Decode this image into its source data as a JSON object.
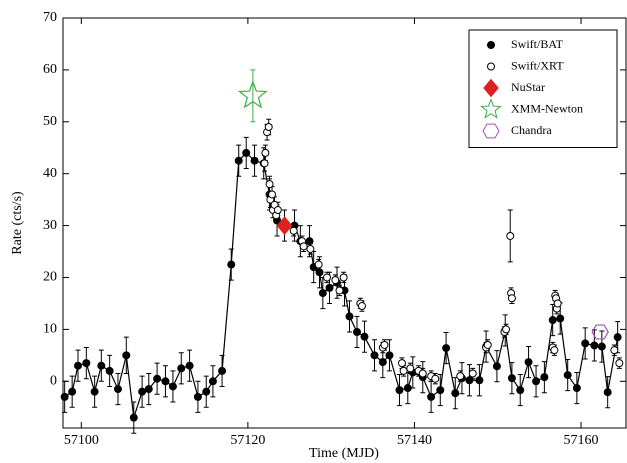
{
  "chart_data": {
    "type": "scatter",
    "x_label": "Time (MJD)",
    "y_label": "Rate (cts/s)",
    "xlim": [
      57097.8,
      57165.4
    ],
    "ylim": [
      -9,
      70
    ],
    "xticks": [
      57100,
      57120,
      57140,
      57160
    ],
    "yticks": [
      0,
      10,
      20,
      30,
      40,
      50,
      60,
      70
    ],
    "legend": "upper right",
    "series": [
      {
        "name": "Swift/BAT",
        "color": "#000000",
        "marker": "circle",
        "filled": true,
        "line": true,
        "x": [
          57098,
          57098.9,
          57099.6,
          57100.6,
          57101.6,
          57102.4,
          57103.4,
          57104.4,
          57105.4,
          57106.3,
          57107.3,
          57108.1,
          57109.1,
          57110.1,
          57111.0,
          57112.0,
          57113.0,
          57114.0,
          57115.0,
          57115.8,
          57116.9,
          57118.0,
          57118.9,
          57119.8,
          57120.8,
          57121.9,
          57122.6,
          57123.5,
          57124.4,
          57125.6,
          57126.3,
          57127.4,
          57127.9,
          57128.6,
          57129.0,
          57129.8,
          57130.7,
          57131.6,
          57132.2,
          57133.1,
          57134.0,
          57135.2,
          57136.2,
          57137.0,
          57138.2,
          57139.2,
          57139.8,
          57141.0,
          57142.0,
          57143.1,
          57143.8,
          57144.9,
          57145.7,
          57146.6,
          57147.8,
          57148.6,
          57149.9,
          57150.9,
          57151.7,
          57152.7,
          57153.7,
          57154.6,
          57155.6,
          57156.6,
          57157.5,
          57158.4,
          57159.5,
          57160.5,
          57161.6,
          57162.5,
          57163.2,
          57164.4
        ],
        "values": [
          -3,
          -2,
          3,
          3.5,
          -2,
          3,
          2,
          -1.5,
          5,
          -7,
          -2,
          -1.5,
          0.5,
          0,
          -1,
          2.5,
          3,
          -3,
          -2,
          0,
          2,
          22.5,
          42.5,
          44,
          42.5,
          42,
          36,
          31,
          30,
          30,
          27,
          27,
          22,
          21,
          17,
          18,
          19,
          17.5,
          12.5,
          9.5,
          8.6,
          5,
          3.7,
          5,
          -1.7,
          -1.3,
          1.7,
          0.8,
          -3,
          -1.7,
          6.4,
          -2.3,
          0.6,
          0.2,
          0.2,
          6.7,
          2.9,
          9.8,
          0.6,
          -1.7,
          3.7,
          0,
          0.8,
          11.8,
          12.1,
          1.2,
          -1.3,
          7.3,
          6.9,
          6.7,
          -2.1,
          8.5
        ],
        "errors": [
          3,
          3,
          3,
          3,
          3,
          3,
          3,
          3,
          3.5,
          3,
          3,
          3,
          3,
          3,
          3,
          3,
          3,
          3,
          3,
          3,
          3,
          3,
          3,
          3,
          3,
          3,
          3,
          3,
          3,
          3,
          3,
          3,
          3,
          3,
          3,
          3,
          3,
          3,
          3,
          3,
          3,
          3,
          3,
          3,
          3,
          3,
          3,
          3,
          3,
          3,
          3,
          3,
          3,
          3,
          3,
          3,
          3,
          3,
          3,
          3,
          3,
          3,
          3,
          3,
          3,
          3,
          3,
          3,
          3,
          3,
          3,
          3
        ]
      },
      {
        "name": "Swift/XRT",
        "color": "#000000",
        "marker": "circle",
        "filled": false,
        "line": false,
        "x": [
          57122.0,
          57122.1,
          57122.3,
          57122.5,
          57122.6,
          57122.7,
          57122.9,
          57123.0,
          57123.2,
          57123.4,
          57123.6,
          57125.5,
          57126.5,
          57126.7,
          57127.5,
          57128.5,
          57129.5,
          57130.5,
          57131.0,
          57131.5,
          57133.5,
          57133.7,
          57136.2,
          57136.4,
          57138.5,
          57138.7,
          57139.5,
          57140.5,
          57141.0,
          57142.0,
          57142.5,
          57145.5,
          57147.0,
          57148.6,
          57148.8,
          57150.8,
          57151.0,
          57151.5,
          57151.6,
          57151.7,
          57156.6,
          57156.8,
          57156.9,
          57157.0,
          57157.1,
          57157.2,
          57164.0,
          57164.6
        ],
        "values": [
          42,
          44,
          48,
          49,
          38,
          35,
          36,
          33,
          34,
          32,
          33,
          29,
          27,
          26,
          25.5,
          22.5,
          20,
          19.5,
          17.5,
          20,
          15,
          14.5,
          6.5,
          7,
          3.5,
          2,
          2.5,
          2,
          1.5,
          1,
          0.5,
          1,
          1.5,
          6.5,
          7,
          9.5,
          10,
          28,
          17,
          16,
          6.5,
          6,
          16.5,
          16,
          14,
          15,
          6,
          3.5
        ],
        "errors": [
          1.5,
          1.5,
          1.5,
          1.5,
          1.5,
          1.5,
          1.5,
          1.5,
          1.5,
          1.5,
          1.5,
          1,
          1,
          1,
          1,
          1,
          1,
          1,
          1,
          1,
          1,
          1,
          1,
          1,
          1,
          1,
          1,
          1,
          1,
          1,
          1,
          1,
          1,
          1,
          1,
          1,
          1,
          5,
          1,
          1,
          1,
          1,
          1,
          1,
          1,
          1,
          1,
          1
        ]
      },
      {
        "name": "NuStar",
        "color": "#e02020",
        "marker": "diamond",
        "filled": true,
        "line": false,
        "x": [
          57124.4
        ],
        "values": [
          30
        ],
        "errors": [
          1
        ]
      },
      {
        "name": "XMM-Newton",
        "color": "#3cb043",
        "marker": "star",
        "filled": false,
        "line": false,
        "x": [
          57120.6
        ],
        "values": [
          55
        ],
        "errors": [
          5
        ]
      },
      {
        "name": "Chandra",
        "color": "#a050c0",
        "marker": "hexagon",
        "filled": false,
        "line": false,
        "x": [
          57162.3
        ],
        "values": [
          9.5
        ]
      }
    ]
  }
}
